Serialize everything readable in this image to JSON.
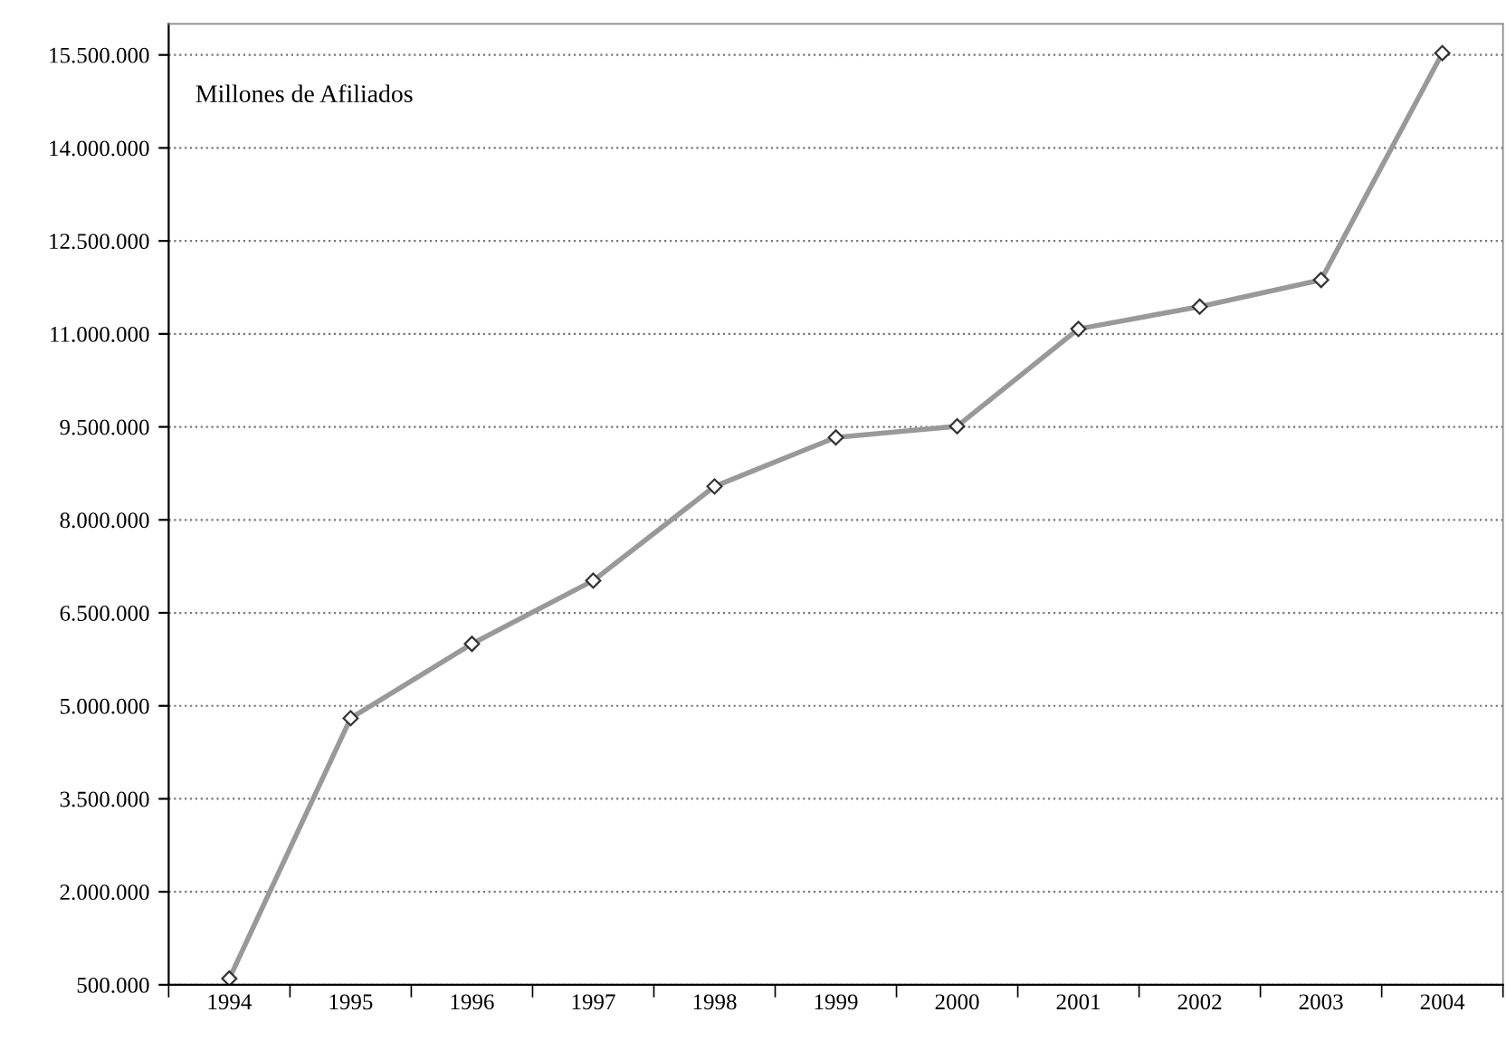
{
  "chart_data": {
    "type": "line",
    "annotations": [
      "Millones de Afiliados"
    ],
    "categories": [
      "1994",
      "1995",
      "1996",
      "1997",
      "1998",
      "1999",
      "2000",
      "2001",
      "2002",
      "2003",
      "2004"
    ],
    "series": [
      {
        "color": "#999999",
        "values": [
          600000,
          4800000,
          6000000,
          7020000,
          8540000,
          9330000,
          9510000,
          11080000,
          11440000,
          11870000,
          15530000
        ]
      }
    ],
    "ylim": [
      500000,
      16000000
    ],
    "yticks": [
      {
        "value": 500000,
        "label": "500.000"
      },
      {
        "value": 2000000,
        "label": "2.000.000"
      },
      {
        "value": 3500000,
        "label": "3.500.000"
      },
      {
        "value": 5000000,
        "label": "5.000.000"
      },
      {
        "value": 6500000,
        "label": "6.500.000"
      },
      {
        "value": 8000000,
        "label": "8.000.000"
      },
      {
        "value": 9500000,
        "label": "9.500.000"
      },
      {
        "value": 11000000,
        "label": "11.000.000"
      },
      {
        "value": 12500000,
        "label": "12.500.000"
      },
      {
        "value": 14000000,
        "label": "14.000.000"
      },
      {
        "value": 15500000,
        "label": "15.500.000"
      }
    ],
    "grid": "y",
    "marker": "diamond",
    "line_style": "solid",
    "legend": false
  }
}
